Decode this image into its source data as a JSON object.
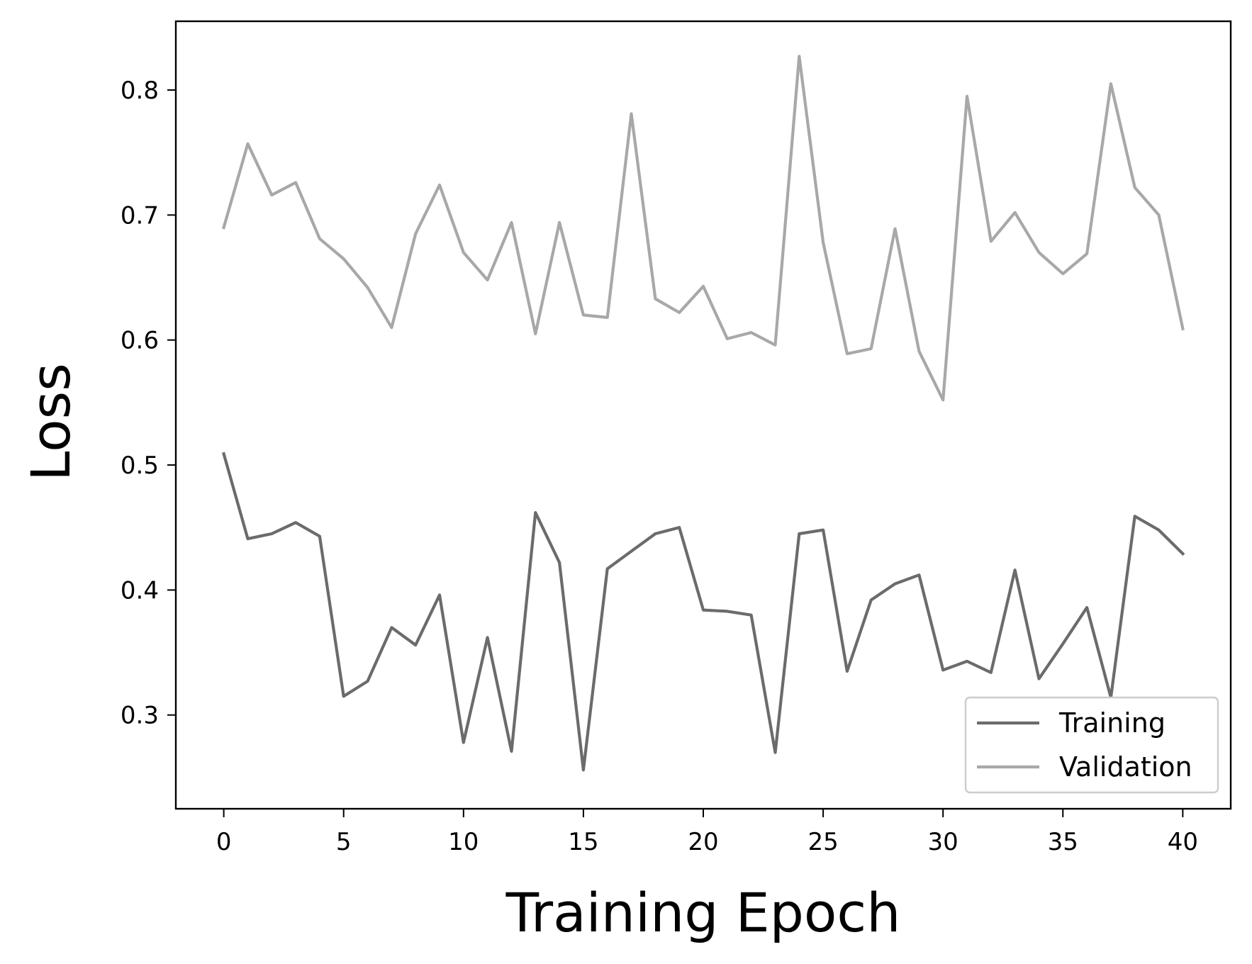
{
  "chart_data": {
    "type": "line",
    "title": "",
    "xlabel": "Training Epoch",
    "ylabel": "Loss",
    "xlim": [
      -2,
      42
    ],
    "ylim": [
      0.225,
      0.855
    ],
    "xticks": [
      0,
      5,
      10,
      15,
      20,
      25,
      30,
      35,
      40
    ],
    "xtick_labels": [
      "0",
      "5",
      "10",
      "15",
      "20",
      "25",
      "30",
      "35",
      "40"
    ],
    "yticks": [
      0.3,
      0.4,
      0.5,
      0.6,
      0.7,
      0.8
    ],
    "ytick_labels": [
      "0.3",
      "0.4",
      "0.5",
      "0.6",
      "0.7",
      "0.8"
    ],
    "grid": false,
    "legend_position": "lower-right",
    "x": [
      0,
      1,
      2,
      3,
      4,
      5,
      6,
      7,
      8,
      9,
      10,
      11,
      12,
      13,
      14,
      15,
      16,
      17,
      18,
      19,
      20,
      21,
      22,
      23,
      24,
      25,
      26,
      27,
      28,
      29,
      30,
      31,
      32,
      33,
      34,
      35,
      36,
      37,
      38,
      39,
      40
    ],
    "series": [
      {
        "name": "Training",
        "color": "#6b6b6b",
        "values": [
          0.509,
          0.441,
          0.445,
          0.454,
          0.443,
          0.315,
          0.327,
          0.37,
          0.356,
          0.396,
          0.278,
          0.362,
          0.271,
          0.462,
          0.422,
          0.256,
          0.417,
          0.431,
          0.445,
          0.45,
          0.384,
          0.383,
          0.38,
          0.27,
          0.445,
          0.448,
          0.335,
          0.392,
          0.405,
          0.412,
          0.336,
          0.343,
          0.334,
          0.416,
          0.329,
          0.357,
          0.386,
          0.314,
          0.459,
          0.448,
          0.429
        ]
      },
      {
        "name": "Validation",
        "color": "#a8a8a8",
        "values": [
          0.69,
          0.757,
          0.716,
          0.726,
          0.681,
          0.665,
          0.642,
          0.61,
          0.685,
          0.724,
          0.67,
          0.648,
          0.694,
          0.605,
          0.694,
          0.62,
          0.618,
          0.781,
          0.633,
          0.622,
          0.643,
          0.601,
          0.606,
          0.596,
          0.827,
          0.678,
          0.589,
          0.593,
          0.689,
          0.591,
          0.552,
          0.795,
          0.679,
          0.702,
          0.67,
          0.653,
          0.669,
          0.805,
          0.722,
          0.7,
          0.609
        ]
      }
    ]
  }
}
